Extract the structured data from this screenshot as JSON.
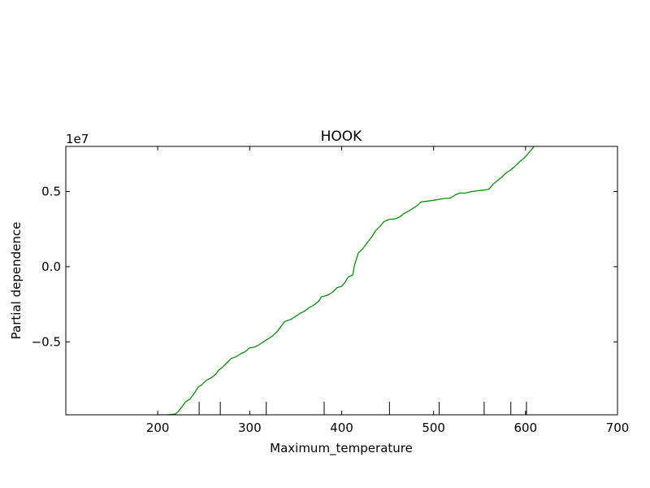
{
  "chart_data": {
    "type": "line",
    "title": "HOOK",
    "xlabel": "Maximum_temperature",
    "ylabel": "Partial dependence",
    "y_offset_label": "1e7",
    "xlim": [
      100,
      700
    ],
    "ylim": [
      -0.985,
      0.8
    ],
    "y_scale_factor": 10000000,
    "xticks": [
      200,
      300,
      400,
      500,
      600,
      700
    ],
    "xtick_labels": [
      "200",
      "300",
      "400",
      "500",
      "600",
      "700"
    ],
    "yticks": [
      0.5,
      0.0,
      -0.5
    ],
    "ytick_labels": [
      "0.5",
      "0.0",
      "−0.5"
    ],
    "rug_x": [
      245,
      268,
      318,
      381,
      452,
      506,
      555,
      584,
      601
    ],
    "grid": false,
    "line_color": "#008000",
    "series": [
      {
        "x": [
          200,
          210,
          219,
          222,
          226,
          230,
          235,
          240,
          244,
          248,
          253,
          258,
          263,
          266,
          270,
          275,
          280,
          285,
          290,
          295,
          300,
          305,
          310,
          315,
          320,
          325,
          330,
          335,
          338,
          345,
          350,
          355,
          360,
          365,
          370,
          375,
          378,
          385,
          390,
          395,
          400,
          403,
          407,
          412,
          414,
          418,
          423,
          428,
          433,
          437,
          442,
          446,
          452,
          458,
          463,
          468,
          473,
          478,
          483,
          486,
          492,
          498,
          503,
          508,
          513,
          518,
          523,
          528,
          535,
          542,
          548,
          555,
          560,
          565,
          570,
          575,
          578,
          583,
          588,
          593,
          598,
          601,
          606,
          610
        ],
        "y": [
          -0.985,
          -0.985,
          -0.98,
          -0.965,
          -0.935,
          -0.9,
          -0.88,
          -0.84,
          -0.8,
          -0.785,
          -0.755,
          -0.74,
          -0.715,
          -0.69,
          -0.67,
          -0.64,
          -0.61,
          -0.6,
          -0.58,
          -0.565,
          -0.54,
          -0.535,
          -0.52,
          -0.5,
          -0.48,
          -0.46,
          -0.43,
          -0.39,
          -0.365,
          -0.35,
          -0.33,
          -0.31,
          -0.295,
          -0.27,
          -0.255,
          -0.23,
          -0.2,
          -0.19,
          -0.17,
          -0.14,
          -0.13,
          -0.11,
          -0.07,
          -0.055,
          0.01,
          0.09,
          0.12,
          0.16,
          0.2,
          0.24,
          0.27,
          0.3,
          0.315,
          0.318,
          0.33,
          0.355,
          0.37,
          0.39,
          0.41,
          0.43,
          0.435,
          0.44,
          0.445,
          0.45,
          0.455,
          0.455,
          0.475,
          0.49,
          0.49,
          0.5,
          0.505,
          0.51,
          0.515,
          0.55,
          0.575,
          0.6,
          0.62,
          0.64,
          0.665,
          0.695,
          0.72,
          0.74,
          0.775,
          0.805
        ]
      }
    ]
  }
}
